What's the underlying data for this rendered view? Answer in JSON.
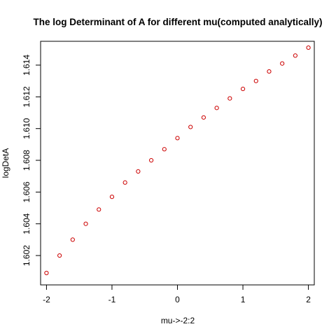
{
  "chart_data": {
    "type": "scatter",
    "title": "The log Determinant of A for different mu(computed analytically)",
    "xlabel": "mu->-2:2",
    "ylabel": "logDetA",
    "xlim": [
      -2.09,
      2.09
    ],
    "ylim": [
      1.60015,
      1.6155
    ],
    "x_ticks": [
      -2,
      -1,
      0,
      1,
      2
    ],
    "x_tick_labels": [
      "-2",
      "-1",
      "0",
      "1",
      "2"
    ],
    "y_ticks": [
      1.602,
      1.604,
      1.606,
      1.608,
      1.61,
      1.612,
      1.614
    ],
    "y_tick_labels": [
      "1.602",
      "1.604",
      "1.606",
      "1.608",
      "1.610",
      "1.612",
      "1.614"
    ],
    "grid": false,
    "point_color": "#cc0000",
    "series": [
      {
        "x": [
          -2.0,
          -1.8,
          -1.6,
          -1.4,
          -1.2,
          -1.0,
          -0.8,
          -0.6,
          -0.4,
          -0.2,
          0.0,
          0.2,
          0.4,
          0.6,
          0.8,
          1.0,
          1.2,
          1.4,
          1.6,
          1.8,
          2.0
        ],
        "values": [
          1.6009,
          1.602,
          1.603,
          1.604,
          1.6049,
          1.6057,
          1.6066,
          1.6073,
          1.608,
          1.6087,
          1.6094,
          1.6101,
          1.6107,
          1.6113,
          1.6119,
          1.6125,
          1.613,
          1.6136,
          1.6141,
          1.6146,
          1.6151
        ]
      }
    ]
  }
}
